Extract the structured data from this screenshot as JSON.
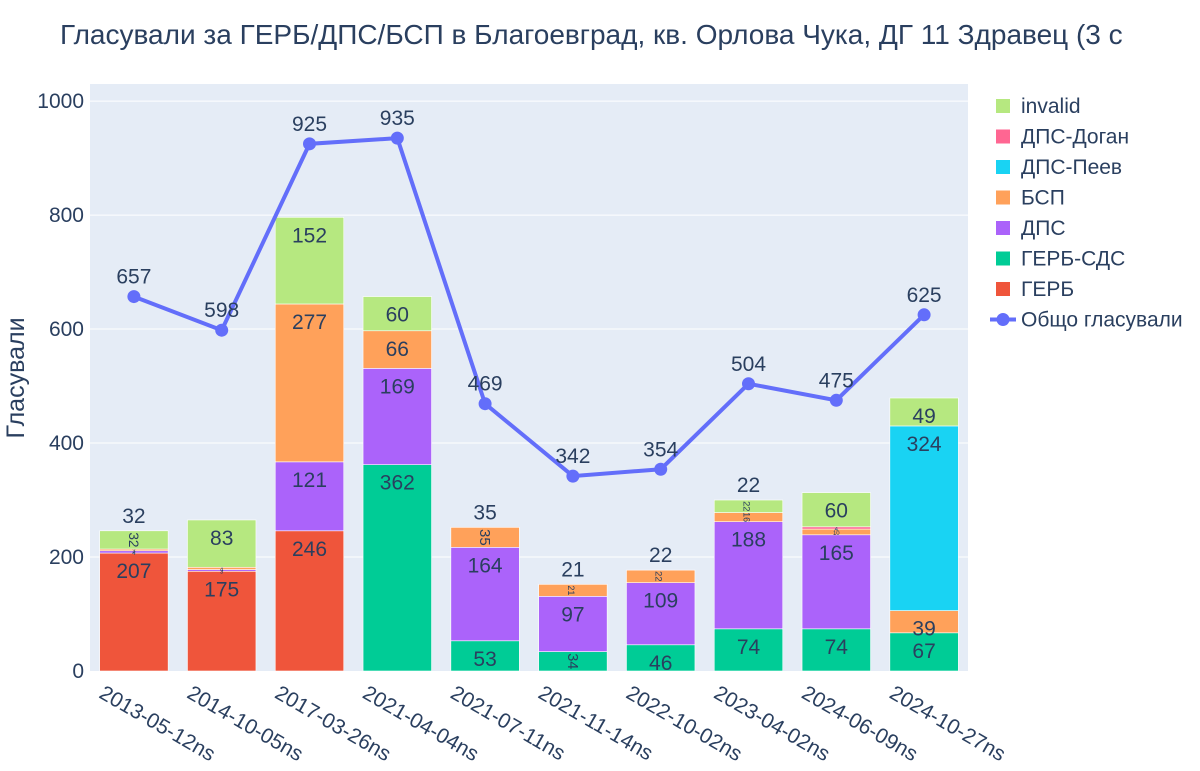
{
  "chart_data": {
    "type": "bar",
    "stacked": true,
    "title": "Гласували за ГЕРБ/ДПС/БСП в Благоевград, кв. Орлова Чука, ДГ 11 Здравец (3 с",
    "xlabel": "",
    "ylabel": "Гласували",
    "ylim": [
      0,
      1030
    ],
    "yticks": [
      0,
      200,
      400,
      600,
      800,
      1000
    ],
    "categories": [
      "2013-05-12ns",
      "2014-10-05ns",
      "2017-03-26ns",
      "2021-04-04ns",
      "2021-07-11ns",
      "2021-11-14ns",
      "2022-10-02ns",
      "2023-04-02ns",
      "2024-06-09ns",
      "2024-10-27ns"
    ],
    "series": [
      {
        "name": "ГЕРБ",
        "color": "#ef553b",
        "values": [
          207,
          175,
          246,
          0,
          0,
          0,
          0,
          0,
          0,
          0
        ]
      },
      {
        "name": "ГЕРБ-СДС",
        "color": "#00cc96",
        "values": [
          0,
          0,
          0,
          362,
          53,
          34,
          46,
          74,
          74,
          67
        ]
      },
      {
        "name": "ДПС",
        "color": "#ab63fa",
        "values": [
          4,
          3,
          121,
          169,
          164,
          97,
          109,
          188,
          165,
          0
        ]
      },
      {
        "name": "БСП",
        "color": "#ffa15a",
        "values": [
          3,
          4,
          277,
          66,
          35,
          21,
          22,
          16,
          10,
          39
        ]
      },
      {
        "name": "ДПС-Пеев",
        "color": "#19d3f3",
        "values": [
          0,
          0,
          0,
          0,
          0,
          0,
          0,
          0,
          0,
          324
        ]
      },
      {
        "name": "ДПС-Доган",
        "color": "#ff6692",
        "values": [
          0,
          0,
          0,
          0,
          0,
          0,
          0,
          0,
          4,
          0
        ]
      },
      {
        "name": "invalid",
        "color": "#b6e880",
        "values": [
          32,
          83,
          152,
          60,
          0,
          0,
          0,
          22,
          60,
          49
        ]
      }
    ],
    "line": {
      "name": "Общо гласували",
      "color": "#636efa",
      "values": [
        657,
        598,
        925,
        935,
        469,
        342,
        354,
        504,
        475,
        625
      ]
    },
    "legend_order": [
      "invalid",
      "ДПС-Доган",
      "ДПС-Пеев",
      "БСП",
      "ДПС",
      "ГЕРБ-СДС",
      "ГЕРБ",
      "Общо гласували"
    ],
    "legend_position": "right"
  }
}
